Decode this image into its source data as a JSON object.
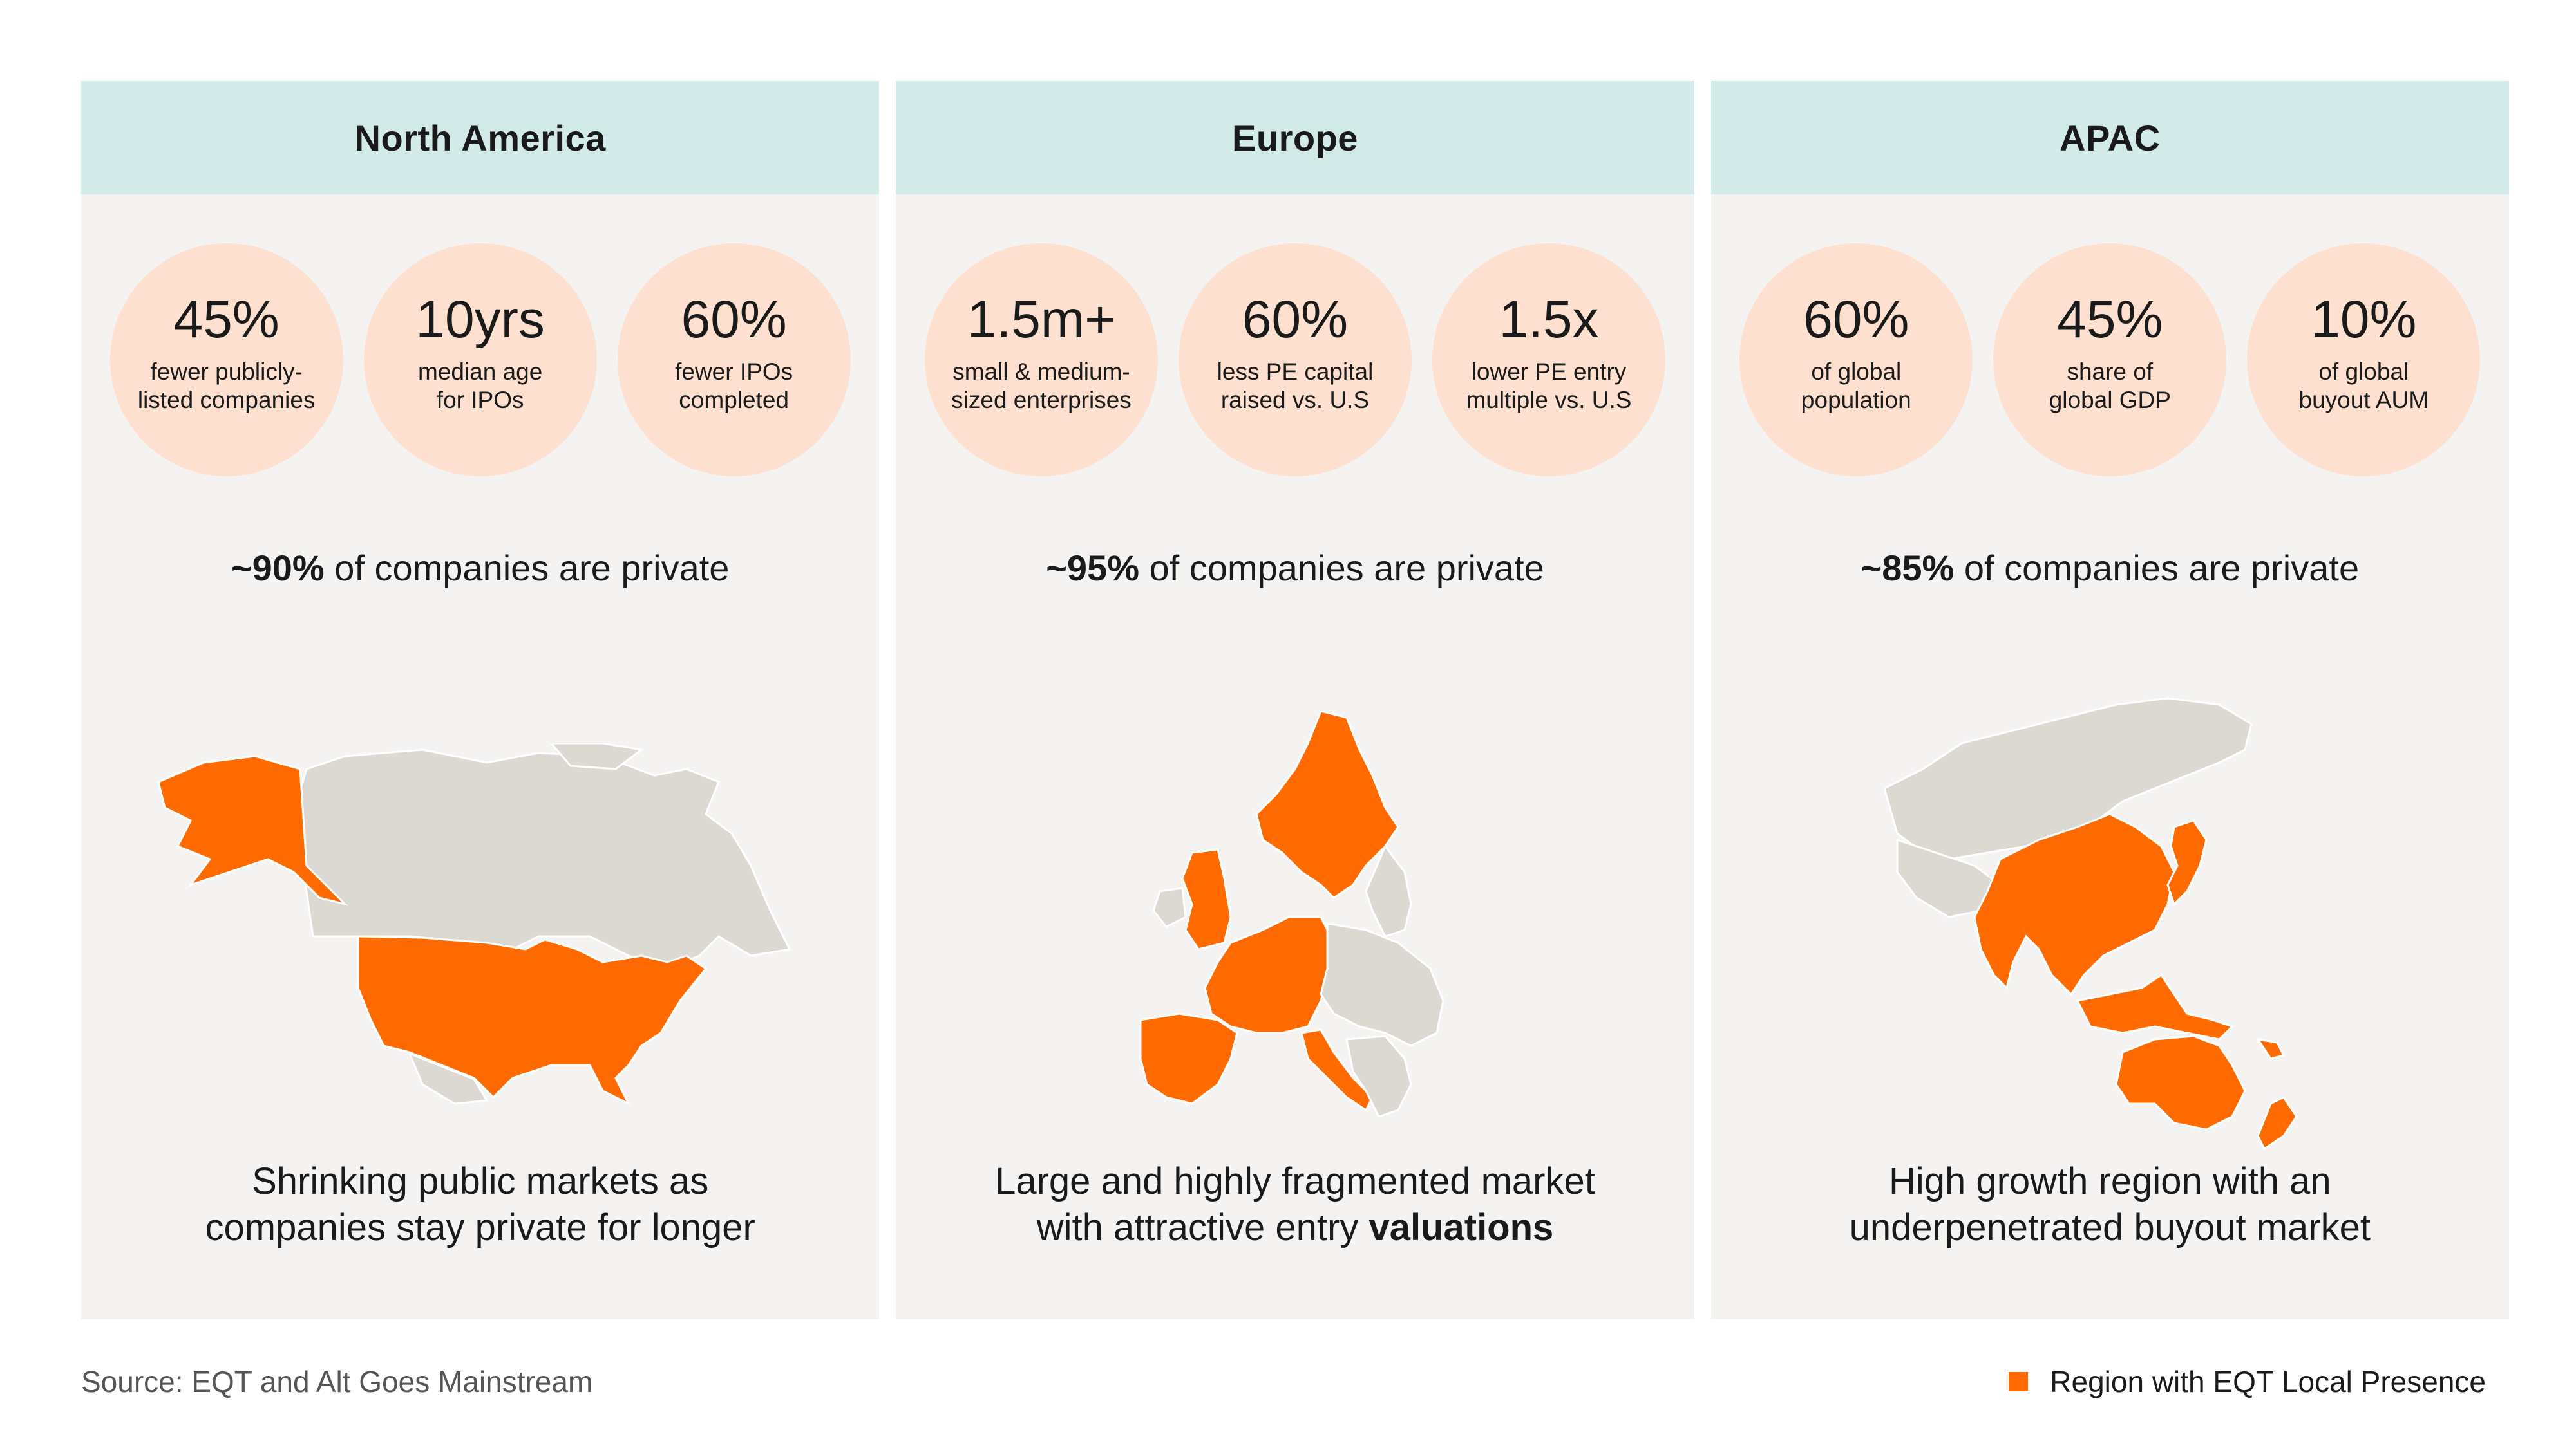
{
  "legend": {
    "color": "#ff6b00",
    "label": "Region with EQT Local Presence"
  },
  "source": "Source: EQT and Alt Goes Mainstream",
  "panels": [
    {
      "title": "North America",
      "stats": [
        {
          "value": "45%",
          "label": "fewer publicly-\nlisted companies"
        },
        {
          "value": "10yrs",
          "label": "median age\nfor IPOs"
        },
        {
          "value": "60%",
          "label": "fewer IPOs\ncompleted"
        }
      ],
      "headline_bold": "~90%",
      "headline_rest": " of companies are private",
      "tagline_line1": "Shrinking public markets as",
      "tagline_line2": "companies stay private for longer"
    },
    {
      "title": "Europe",
      "stats": [
        {
          "value": "1.5m+",
          "label": "small & medium-\nsized enterprises"
        },
        {
          "value": "60%",
          "label": "less PE capital\nraised vs. U.S"
        },
        {
          "value": "1.5x",
          "label": "lower PE entry\nmultiple vs. U.S"
        }
      ],
      "headline_bold": "~95%",
      "headline_rest": " of companies are private",
      "tagline_line1": "Large and highly fragmented market",
      "tagline_line2": "with attractive entry ",
      "tagline_bold": "valuations"
    },
    {
      "title": "APAC",
      "stats": [
        {
          "value": "60%",
          "label": "of global\npopulation"
        },
        {
          "value": "45%",
          "label": "share of\nglobal GDP"
        },
        {
          "value": "10%",
          "label": "of global\nbuyout AUM"
        }
      ],
      "headline_bold": "~85%",
      "headline_rest": " of companies are private",
      "tagline_line1": "High growth region with an",
      "tagline_line2": "underpenetrated buyout market"
    }
  ]
}
